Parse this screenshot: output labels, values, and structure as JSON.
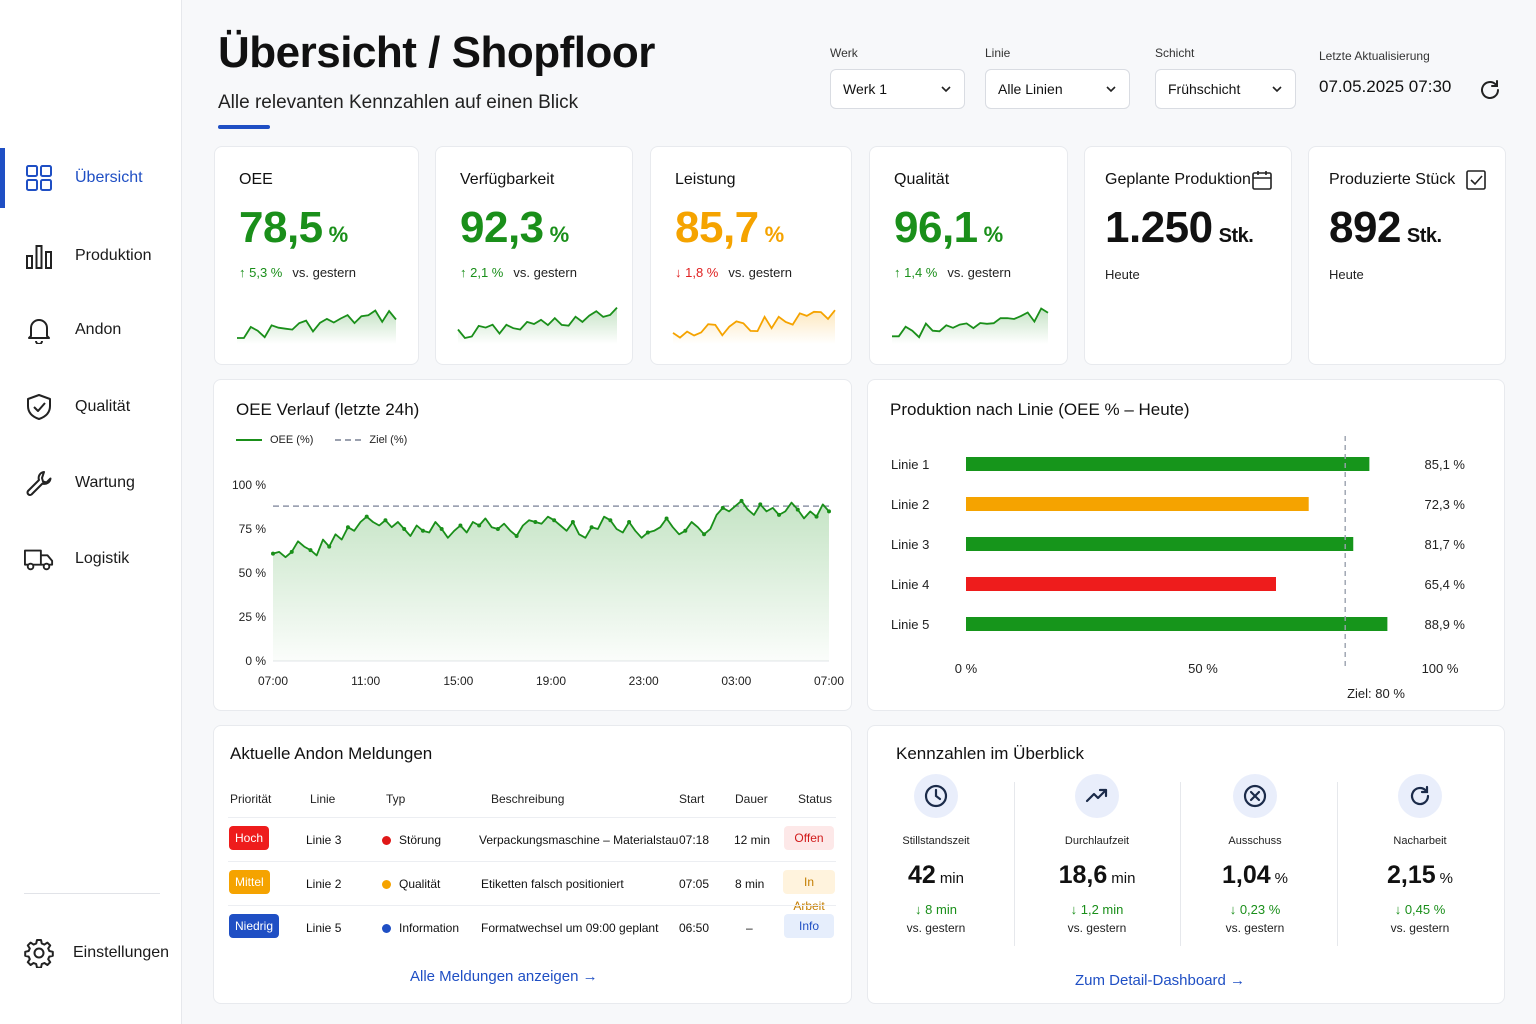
{
  "header": {
    "title": "Übersicht / Shopfloor",
    "subtitle": "Alle relevanten Kennzahlen auf einen Blick"
  },
  "sidebar": {
    "items": [
      {
        "label": "Übersicht",
        "icon": "grid-icon"
      },
      {
        "label": "Produktion",
        "icon": "bar-chart-icon"
      },
      {
        "label": "Andon",
        "icon": "bell-icon"
      },
      {
        "label": "Qualität",
        "icon": "shield-check-icon"
      },
      {
        "label": "Wartung",
        "icon": "wrench-icon"
      },
      {
        "label": "Logistik",
        "icon": "truck-icon"
      }
    ],
    "settings": {
      "label": "Einstellungen",
      "icon": "gear-icon"
    }
  },
  "filters": {
    "werk": {
      "label": "Werk",
      "value": "Werk 1"
    },
    "linie": {
      "label": "Linie",
      "value": "Alle Linien"
    },
    "schicht": {
      "label": "Schicht",
      "value": "Frühschicht"
    },
    "update": {
      "label": "Letzte Aktualisierung",
      "value": "07.05.2025 07:30"
    }
  },
  "kpis": [
    {
      "title": "OEE",
      "value": "78,5",
      "unit": "%",
      "delta": "↑ 5,3 %",
      "vs": "vs. gestern",
      "color": "#1a8f1a"
    },
    {
      "title": "Verfügbarkeit",
      "value": "92,3",
      "unit": "%",
      "delta": "↑ 2,1 %",
      "vs": "vs. gestern",
      "color": "#1a8f1a"
    },
    {
      "title": "Leistung",
      "value": "85,7",
      "unit": "%",
      "delta": "↓ 1,8 %",
      "vs": "vs. gestern",
      "color": "#f5a300",
      "delta_color": "#e02020"
    },
    {
      "title": "Qualität",
      "value": "96,1",
      "unit": "%",
      "delta": "↑ 1,4 %",
      "vs": "vs. gestern",
      "color": "#1a8f1a"
    }
  ],
  "plan": {
    "title": "Geplante Produktion",
    "value": "1.250",
    "unit": "Stk.",
    "note": "Heute",
    "icon": "calendar-icon"
  },
  "produced": {
    "title": "Produzierte Stück",
    "value": "892",
    "unit": "Stk.",
    "note": "Heute",
    "icon": "checkbox-icon"
  },
  "oee_trend": {
    "title": "OEE Verlauf (letzte 24h)",
    "legend_oee": "OEE (%)",
    "legend_goal": "Ziel (%)"
  },
  "by_line": {
    "title": "Produktion nach Linie (OEE % – Heute)",
    "goal_label": "Ziel: 80 %"
  },
  "chart_data": [
    {
      "type": "line",
      "title": "OEE Verlauf (letzte 24h)",
      "x_ticks": [
        "07:00",
        "11:00",
        "15:00",
        "19:00",
        "23:00",
        "03:00",
        "07:00"
      ],
      "y_ticks": [
        "0 %",
        "25 %",
        "50 %",
        "75 %",
        "100 %"
      ],
      "ylim": [
        0,
        100
      ],
      "series": [
        {
          "name": "OEE (%)",
          "values": [
            61,
            62,
            59,
            62,
            68,
            65,
            63,
            60,
            69,
            65,
            72,
            69,
            76,
            74,
            79,
            82,
            79,
            77,
            80,
            76,
            79,
            75,
            71,
            77,
            74,
            73,
            79,
            75,
            70,
            74,
            77,
            73,
            79,
            77,
            81,
            76,
            75,
            78,
            74,
            71,
            77,
            80,
            79,
            78,
            82,
            80,
            77,
            74,
            79,
            72,
            70,
            76,
            75,
            82,
            80,
            75,
            73,
            79,
            74,
            70,
            73,
            74,
            76,
            81,
            76,
            72,
            74,
            79,
            76,
            72,
            75,
            83,
            87,
            85,
            88,
            91,
            86,
            83,
            89,
            85,
            87,
            83,
            85,
            90,
            86,
            81,
            85,
            82,
            89,
            85
          ]
        },
        {
          "name": "Ziel (%)",
          "values": [
            88
          ]
        }
      ],
      "grid": false,
      "legend": "top-left"
    },
    {
      "type": "bar",
      "title": "Produktion nach Linie (OEE % – Heute)",
      "categories": [
        "Linie 1",
        "Linie 2",
        "Linie 3",
        "Linie 4",
        "Linie 5"
      ],
      "values": [
        85.1,
        72.3,
        81.7,
        65.4,
        88.9
      ],
      "value_labels": [
        "85,1 %",
        "72,3 %",
        "81,7 %",
        "65,4 %",
        "88,9 %"
      ],
      "colors": [
        "#16951b",
        "#f5a300",
        "#16951b",
        "#ee1c1c",
        "#16951b"
      ],
      "x_ticks": [
        "0 %",
        "50 %",
        "100 %"
      ],
      "xlim": [
        0,
        100
      ],
      "target": 80
    }
  ],
  "andon": {
    "title": "Aktuelle Andon Meldungen",
    "headers": [
      "Priorität",
      "Linie",
      "Typ",
      "Beschreibung",
      "Start",
      "Dauer",
      "Status"
    ],
    "rows": [
      {
        "prio": "Hoch",
        "prio_color": "#ee1c1c",
        "line": "Linie 3",
        "type": "Störung",
        "type_color": "#e01818",
        "desc": "Verpackungsmaschine – Materialstau",
        "start": "07:18",
        "dur": "12 min",
        "status": "Offen",
        "status_bg": "#fde8e8",
        "status_fg": "#d11a1a"
      },
      {
        "prio": "Mittel",
        "prio_color": "#f5a300",
        "line": "Linie 2",
        "type": "Qualität",
        "type_color": "#f5a300",
        "desc": "Etiketten falsch positioniert",
        "start": "07:05",
        "dur": "8 min",
        "status": "In Arbeit",
        "status_bg": "#fff3dd",
        "status_fg": "#c47d00"
      },
      {
        "prio": "Niedrig",
        "prio_color": "#1f4fc4",
        "line": "Linie 5",
        "type": "Information",
        "type_color": "#1f4fc4",
        "desc": "Formatwechsel um 09:00 geplant",
        "start": "06:50",
        "dur": "–",
        "status": "Info",
        "status_bg": "#e6eefc",
        "status_fg": "#1f4fc4"
      }
    ],
    "link": "Alle Meldungen anzeigen →"
  },
  "overview": {
    "title": "Kennzahlen im Überblick",
    "items": [
      {
        "label": "Stillstandszeit",
        "value": "42",
        "unit": "min",
        "delta": "↓ 8 min",
        "vs": "vs. gestern",
        "icon": "clock-icon"
      },
      {
        "label": "Durchlaufzeit",
        "value": "18,6",
        "unit": "min",
        "delta": "↓ 1,2 min",
        "vs": "vs. gestern",
        "icon": "trend-up-icon"
      },
      {
        "label": "Ausschuss",
        "value": "1,04",
        "unit": "%",
        "delta": "↓ 0,23 %",
        "vs": "vs. gestern",
        "icon": "x-circle-icon"
      },
      {
        "label": "Nacharbeit",
        "value": "2,15",
        "unit": "%",
        "delta": "↓ 0,45 %",
        "vs": "vs. gestern",
        "icon": "refresh-icon"
      }
    ],
    "link": "Zum Detail-Dashboard →"
  }
}
